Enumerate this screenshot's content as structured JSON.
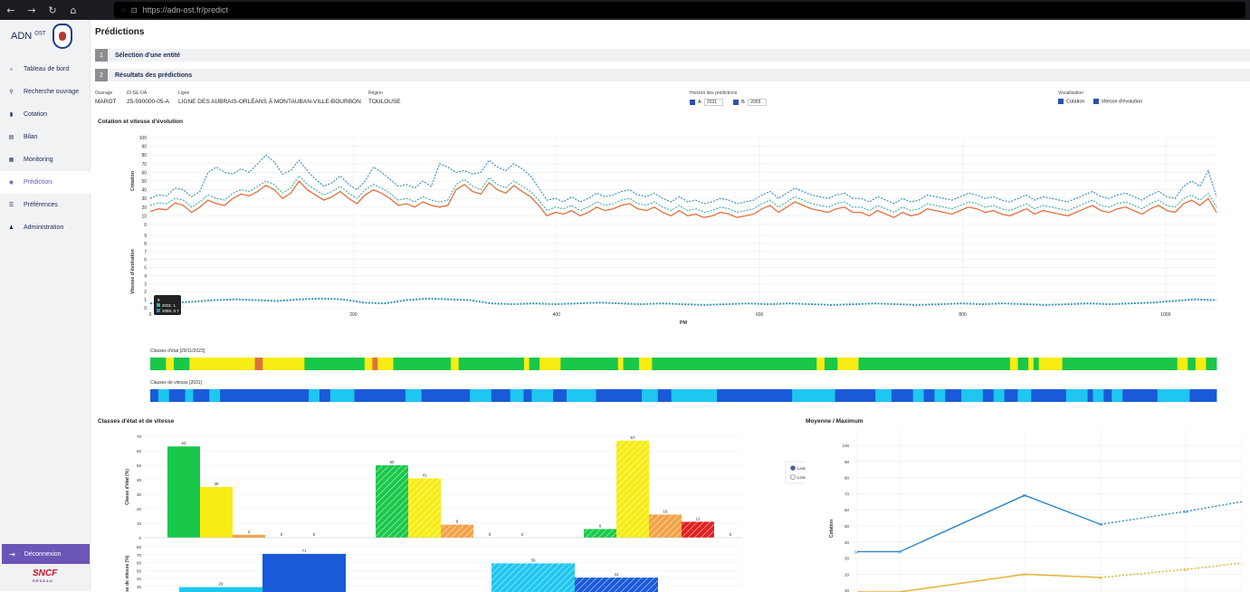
{
  "browser": {
    "url": "https://adn-ost.fr/predict"
  },
  "app": {
    "logo": "ADN",
    "logo_sup": "OST"
  },
  "sidebar": {
    "items": [
      {
        "label": "Tableau de bord",
        "icon": "home-icon"
      },
      {
        "label": "Recherche ouvrage",
        "icon": "search-icon"
      },
      {
        "label": "Cotation",
        "icon": "bar-chart-icon"
      },
      {
        "label": "Bilan",
        "icon": "document-icon"
      },
      {
        "label": "Monitoring",
        "icon": "grid-icon"
      },
      {
        "label": "Prédiction",
        "icon": "eye-icon",
        "active": true
      },
      {
        "label": "Préférences",
        "icon": "sliders-icon"
      },
      {
        "label": "Administration",
        "icon": "users-icon"
      }
    ],
    "logout": "Déconnexion",
    "brand": "SNCF",
    "brand_sub": "RÉSEAU"
  },
  "page": {
    "title": "Prédictions"
  },
  "steps": [
    {
      "num": "1",
      "label": "Sélection d'une entité"
    },
    {
      "num": "2",
      "label": "Résultats des prédictions"
    }
  ],
  "info": {
    "ouvrage_label": "Ouvrage",
    "ouvrage": "MAROT",
    "id_label": "ID-SE-OA",
    "id": "25-590000-05-A",
    "ligne_label": "Ligne",
    "ligne": "LIGNE DES AUBRAIS-ORLÉANS À MONTAUBAN-VILLE-BOURBON",
    "region_label": "Région",
    "region": "TOULOUSE",
    "horizon_label": "Horizon des prédictions",
    "horizon_a_label": "A",
    "horizon_a": "2031",
    "horizon_b_label": "B",
    "horizon_b": "2055",
    "visu_label": "Visualisation",
    "visu_cotation": "Cotation",
    "visu_vitesse": "Vitesse d'évolution"
  },
  "colors": {
    "orange": "#e0713e",
    "teal": "#3ea9a6",
    "blue": "#2f86c4",
    "green": "#19c84a",
    "yellow": "#f7ec13",
    "lightorange": "#f2a247",
    "red": "#e02020",
    "cyan": "#1ec6f0",
    "deepblue": "#1a5ad8"
  },
  "chart_data": [
    {
      "type": "line",
      "title": "Cotation et vitesse d'évolution",
      "ylabel": "Cotation",
      "ylim": [
        0,
        100
      ],
      "yticks": [
        0,
        10,
        20,
        30,
        40,
        50,
        60,
        70,
        80,
        90,
        100
      ],
      "series": [
        {
          "values": [
            15,
            18,
            17,
            25,
            22,
            14,
            20,
            28,
            24,
            22,
            30,
            35,
            33,
            38,
            45,
            40,
            30,
            36,
            50,
            40,
            34,
            28,
            32,
            38,
            30,
            24,
            34,
            40,
            36,
            30,
            22,
            24,
            20,
            26,
            22,
            20,
            22,
            40,
            46,
            38,
            35,
            48,
            40,
            36,
            45,
            38,
            32,
            22,
            10,
            14,
            12,
            16,
            10,
            14,
            20,
            16,
            18,
            22,
            24,
            18,
            16,
            20,
            14,
            10,
            16,
            10,
            12,
            8,
            10,
            14,
            12,
            8,
            10,
            12,
            18,
            22,
            14,
            20,
            26,
            22,
            18,
            16,
            14,
            18,
            20,
            14,
            14,
            10,
            16,
            12,
            8,
            14,
            10,
            12,
            18,
            16,
            14,
            12,
            16,
            20,
            18,
            14,
            16,
            12,
            10,
            14,
            18,
            12,
            16,
            14,
            12,
            10,
            14,
            18,
            22,
            16,
            14,
            18,
            20,
            16,
            12,
            18,
            22,
            16,
            14,
            24,
            28,
            22,
            30,
            14
          ]
        },
        {
          "values": [
            22,
            25,
            24,
            30,
            28,
            20,
            26,
            34,
            30,
            28,
            36,
            40,
            38,
            44,
            50,
            46,
            36,
            42,
            56,
            46,
            40,
            34,
            38,
            44,
            36,
            30,
            40,
            46,
            42,
            36,
            28,
            30,
            26,
            32,
            28,
            26,
            28,
            46,
            52,
            44,
            40,
            54,
            46,
            42,
            50,
            44,
            38,
            28,
            16,
            20,
            18,
            22,
            16,
            20,
            26,
            22,
            24,
            28,
            30,
            24,
            22,
            26,
            20,
            16,
            22,
            16,
            18,
            14,
            16,
            20,
            18,
            14,
            16,
            18,
            24,
            28,
            20,
            26,
            32,
            28,
            24,
            22,
            20,
            24,
            26,
            20,
            20,
            16,
            22,
            18,
            14,
            20,
            16,
            18,
            24,
            22,
            20,
            18,
            22,
            26,
            24,
            20,
            22,
            18,
            16,
            20,
            24,
            18,
            22,
            20,
            18,
            16,
            20,
            24,
            28,
            22,
            20,
            24,
            26,
            22,
            18,
            24,
            28,
            22,
            20,
            30,
            34,
            28,
            36,
            20
          ]
        },
        {
          "values": [
            30,
            34,
            33,
            42,
            40,
            32,
            38,
            60,
            66,
            60,
            58,
            64,
            60,
            70,
            80,
            72,
            58,
            62,
            74,
            62,
            52,
            44,
            48,
            56,
            46,
            40,
            50,
            66,
            60,
            52,
            44,
            46,
            42,
            50,
            44,
            70,
            66,
            60,
            62,
            58,
            60,
            74,
            66,
            62,
            70,
            64,
            56,
            42,
            28,
            30,
            26,
            32,
            26,
            30,
            36,
            32,
            34,
            38,
            40,
            34,
            32,
            36,
            30,
            26,
            32,
            26,
            28,
            24,
            26,
            30,
            28,
            24,
            26,
            28,
            34,
            38,
            30,
            36,
            42,
            38,
            34,
            32,
            30,
            34,
            36,
            30,
            30,
            26,
            32,
            28,
            24,
            30,
            26,
            28,
            34,
            32,
            30,
            28,
            32,
            36,
            34,
            30,
            32,
            28,
            26,
            30,
            34,
            28,
            32,
            30,
            28,
            26,
            30,
            34,
            38,
            32,
            30,
            34,
            36,
            32,
            28,
            34,
            38,
            32,
            30,
            44,
            50,
            44,
            62,
            32
          ]
        }
      ]
    },
    {
      "type": "line",
      "ylabel": "Vitesse d'évolution",
      "xlabel": "PM",
      "ylim": [
        0,
        9
      ],
      "yticks": [
        0,
        1,
        2,
        3,
        4,
        5,
        6,
        7,
        8,
        9
      ],
      "xticks": [
        0,
        200,
        400,
        600,
        800,
        1000
      ],
      "tooltip": {
        "title": "9",
        "rows": [
          "2031: 1",
          "2055: 0.7"
        ]
      },
      "series": [
        {
          "name": "2031",
          "values": [
            0.6,
            0.7,
            0.8,
            1.0,
            1.1,
            1.0,
            0.9,
            1.1,
            1.2,
            1.1,
            0.7,
            0.6,
            1.0,
            1.2,
            1.1,
            1.0,
            0.6,
            0.5,
            0.6,
            0.5,
            0.6,
            0.7,
            0.6,
            0.5,
            0.6,
            0.5,
            0.4,
            0.5,
            0.6,
            0.5,
            0.6,
            0.5,
            0.4,
            0.5,
            0.6,
            0.5,
            0.4,
            0.5,
            0.6,
            0.5,
            0.6,
            0.5,
            0.4,
            0.5,
            0.6,
            0.5,
            0.6,
            0.7,
            0.9,
            1.1,
            1.0
          ]
        },
        {
          "name": "2055",
          "values": [
            0.5,
            0.6,
            0.7,
            0.9,
            1.0,
            0.9,
            0.8,
            1.0,
            1.1,
            1.0,
            0.6,
            0.5,
            0.9,
            1.1,
            1.0,
            0.9,
            0.5,
            0.4,
            0.5,
            0.4,
            0.5,
            0.6,
            0.5,
            0.4,
            0.5,
            0.4,
            0.3,
            0.4,
            0.5,
            0.4,
            0.5,
            0.4,
            0.3,
            0.4,
            0.5,
            0.4,
            0.3,
            0.4,
            0.5,
            0.4,
            0.5,
            0.4,
            0.3,
            0.4,
            0.5,
            0.4,
            0.5,
            0.6,
            0.8,
            1.0,
            0.9
          ]
        }
      ]
    },
    {
      "type": "heatmap",
      "title": "Classes d'état",
      "subtitle": "[29/11/2023]",
      "segments": [
        [
          "green",
          6
        ],
        [
          "yellow",
          3
        ],
        [
          "green",
          6
        ],
        [
          "yellow",
          25
        ],
        [
          "orange",
          3
        ],
        [
          "yellow",
          16
        ],
        [
          "green",
          23
        ],
        [
          "yellow",
          3
        ],
        [
          "orange",
          2
        ],
        [
          "yellow",
          6
        ],
        [
          "green",
          22
        ],
        [
          "yellow",
          3
        ],
        [
          "green",
          25
        ],
        [
          "yellow",
          2
        ],
        [
          "green",
          4
        ],
        [
          "yellow",
          8
        ],
        [
          "green",
          22
        ],
        [
          "yellow",
          2
        ],
        [
          "green",
          6
        ],
        [
          "yellow",
          5
        ],
        [
          "green",
          31
        ],
        [
          "green",
          32
        ],
        [
          "yellow",
          3
        ],
        [
          "green",
          5
        ],
        [
          "yellow",
          8
        ],
        [
          "green",
          34
        ],
        [
          "green",
          24
        ],
        [
          "yellow",
          3
        ],
        [
          "green",
          4
        ],
        [
          "yellow",
          2
        ],
        [
          "green",
          2
        ],
        [
          "yellow",
          9
        ],
        [
          "green",
          26
        ],
        [
          "green",
          18
        ],
        [
          "yellow",
          4
        ],
        [
          "green",
          3
        ],
        [
          "yellow",
          4
        ],
        [
          "green",
          4
        ]
      ]
    },
    {
      "type": "heatmap",
      "title": "Classes de vitesse",
      "subtitle": "[2031]",
      "segments": [
        [
          "deepblue",
          3
        ],
        [
          "cyan",
          4
        ],
        [
          "deepblue",
          6
        ],
        [
          "cyan",
          3
        ],
        [
          "deepblue",
          6
        ],
        [
          "cyan",
          4
        ],
        [
          "deepblue",
          33
        ],
        [
          "cyan",
          4
        ],
        [
          "deepblue",
          4
        ],
        [
          "cyan",
          9
        ],
        [
          "deepblue",
          19
        ],
        [
          "cyan",
          6
        ],
        [
          "deepblue",
          18
        ],
        [
          "cyan",
          8
        ],
        [
          "deepblue",
          7
        ],
        [
          "cyan",
          5
        ],
        [
          "deepblue",
          3
        ],
        [
          "cyan",
          8
        ],
        [
          "deepblue",
          5
        ],
        [
          "cyan",
          11
        ],
        [
          "deepblue",
          17
        ],
        [
          "cyan",
          6
        ],
        [
          "deepblue",
          5
        ],
        [
          "cyan",
          17
        ],
        [
          "deepblue",
          28
        ],
        [
          "cyan",
          16
        ],
        [
          "deepblue",
          15
        ],
        [
          "cyan",
          6
        ],
        [
          "deepblue",
          8
        ],
        [
          "cyan",
          4
        ],
        [
          "deepblue",
          4
        ],
        [
          "cyan",
          4
        ],
        [
          "deepblue",
          6
        ],
        [
          "cyan",
          8
        ],
        [
          "deepblue",
          4
        ],
        [
          "cyan",
          4
        ],
        [
          "deepblue",
          5
        ],
        [
          "cyan",
          5
        ],
        [
          "deepblue",
          13
        ],
        [
          "cyan",
          8
        ],
        [
          "deepblue",
          2
        ],
        [
          "cyan",
          4
        ],
        [
          "deepblue",
          3
        ],
        [
          "cyan",
          4
        ],
        [
          "deepblue",
          13
        ],
        [
          "cyan",
          12
        ],
        [
          "deepblue",
          10
        ]
      ]
    },
    {
      "type": "bar",
      "title": "Classes d'état et de vitesse",
      "ylabel": "Classe d'état (%)",
      "ylim": [
        0,
        70
      ],
      "groups": [
        {
          "values": [
            63,
            35,
            2,
            0,
            0
          ],
          "hatched": false
        },
        {
          "values": [
            50,
            41,
            9,
            0,
            0
          ],
          "hatched": true
        },
        {
          "values": [
            6,
            67,
            16,
            11,
            0
          ],
          "hatched": true
        }
      ],
      "legend": [
        "Linéaire %",
        "Linéaire m"
      ],
      "legend_selected": 0
    },
    {
      "type": "bar",
      "ylabel": "Classe de vitesse (%)",
      "ylim": [
        0,
        80
      ],
      "groups": [
        {
          "values": [
            29,
            71
          ],
          "hatched": false
        },
        {
          "values": [
            59,
            41
          ],
          "hatched": true
        }
      ]
    },
    {
      "type": "line",
      "title": "Moyenne / Maximum",
      "ylabel": "Cotation",
      "ylim": [
        0,
        100
      ],
      "series": [
        {
          "values": [
            34,
            34,
            69,
            51,
            59,
            65
          ],
          "labels": [
            "34",
            "34",
            "69",
            "51",
            "59",
            ""
          ]
        },
        {
          "values": [
            9,
            9,
            20,
            18,
            23,
            27
          ],
          "labels": [
            "",
            "",
            "20",
            "18",
            "23",
            ""
          ]
        }
      ]
    }
  ]
}
